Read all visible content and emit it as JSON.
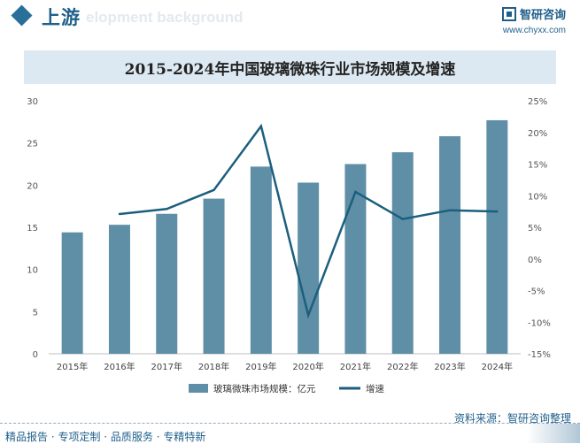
{
  "header": {
    "section_title": "上游",
    "watermark_en": "elopment background",
    "brand_name": "智研咨询",
    "brand_url": "www.chyxx.com"
  },
  "chart_data": {
    "type": "bar+line",
    "title": "2015-2024年中国玻璃微珠行业市场规模及增速",
    "categories": [
      "2015年",
      "2016年",
      "2017年",
      "2018年",
      "2019年",
      "2020年",
      "2021年",
      "2022年",
      "2023年",
      "2024年"
    ],
    "series": [
      {
        "name": "玻璃微珠市场规模：亿元",
        "type": "bar",
        "axis": "left",
        "values": [
          14.4,
          15.3,
          16.6,
          18.4,
          22.2,
          20.3,
          22.5,
          23.9,
          25.8,
          27.7
        ],
        "color": "#5f8fa6"
      },
      {
        "name": "增速",
        "type": "line",
        "axis": "right",
        "values": [
          null,
          7.1,
          7.9,
          10.9,
          21.0,
          -8.9,
          10.6,
          6.3,
          7.7,
          7.5
        ],
        "color": "#1b5f7d"
      }
    ],
    "y_left": {
      "range": [
        0,
        30
      ],
      "ticks": [
        "0",
        "5",
        "10",
        "15",
        "20",
        "25",
        "30"
      ]
    },
    "y_right": {
      "range": [
        -15,
        25
      ],
      "ticks": [
        "-15%",
        "-10%",
        "-5%",
        "0%",
        "5%",
        "10%",
        "15%",
        "20%",
        "25%"
      ]
    },
    "grid": false,
    "legend_position": "bottom"
  },
  "footer": {
    "source": "资料来源：智研咨询整理",
    "tagline": "精品报告 · 专项定制 · 品质服务 · 专精特新"
  }
}
